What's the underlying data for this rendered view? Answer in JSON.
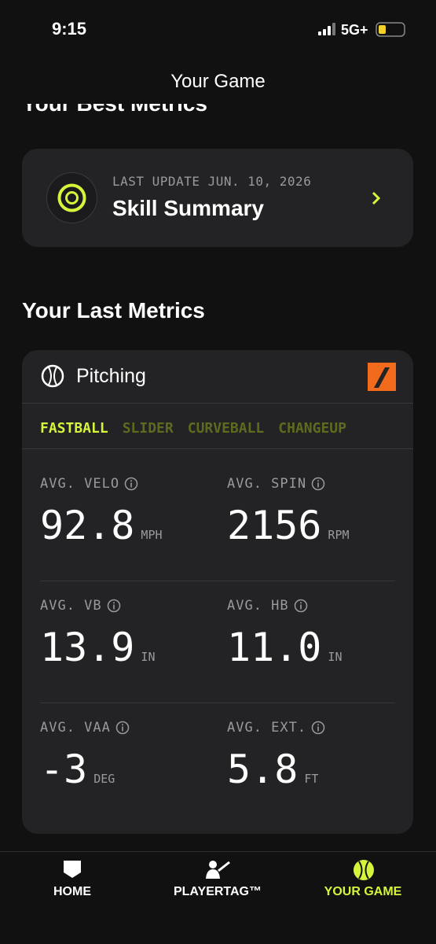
{
  "status_bar": {
    "time": "9:15",
    "network": "5G+"
  },
  "header": {
    "title": "Your Game"
  },
  "best_metrics": {
    "title": "Your Best Metrics",
    "card": {
      "caption": "LAST UPDATE JUN. 10, 2026",
      "title": "Skill Summary"
    }
  },
  "last_metrics": {
    "title": "Your Last Metrics",
    "card": {
      "title": "Pitching",
      "tabs": [
        "FASTBALL",
        "SLIDER",
        "CURVEBALL",
        "CHANGEUP"
      ],
      "metrics": [
        {
          "label": "AVG. VELO",
          "value": "92.8",
          "unit": "MPH"
        },
        {
          "label": "AVG. SPIN",
          "value": "2156",
          "unit": "RPM"
        },
        {
          "label": "AVG. VB",
          "value": "13.9",
          "unit": "IN"
        },
        {
          "label": "AVG. HB",
          "value": "11.0",
          "unit": "IN"
        },
        {
          "label": "AVG. VAA",
          "value": "-3",
          "unit": "DEG"
        },
        {
          "label": "AVG. EXT.",
          "value": "5.8",
          "unit": "FT"
        }
      ]
    }
  },
  "nav": {
    "items": [
      "HOME",
      "PLAYERTAG™",
      "YOUR GAME"
    ]
  }
}
